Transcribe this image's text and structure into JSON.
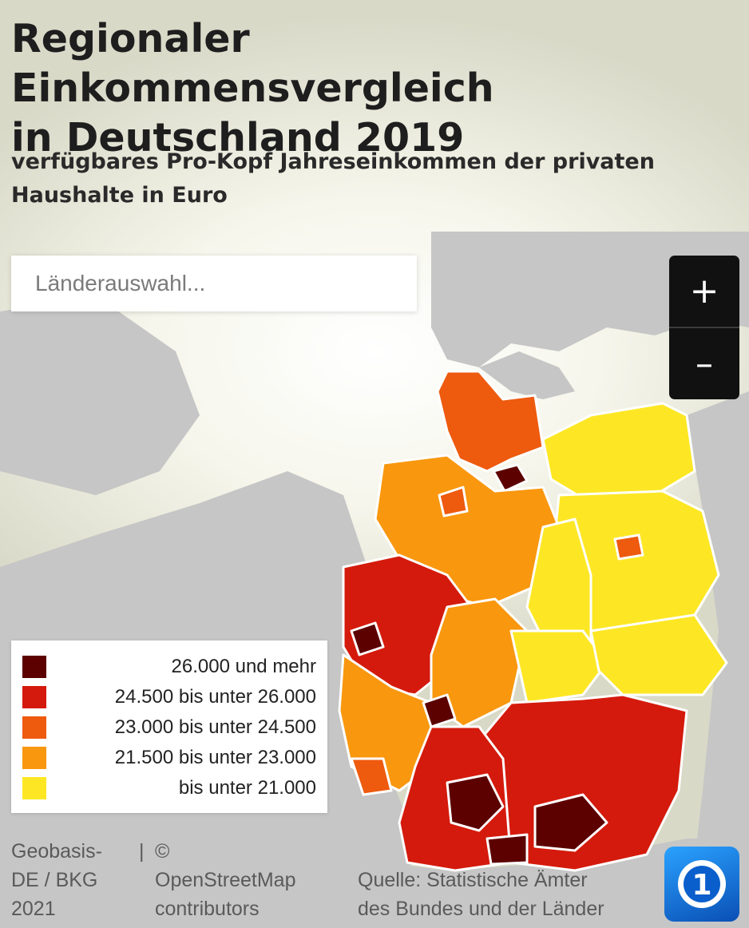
{
  "header": {
    "title_line1": "Regionaler Einkommensvergleich",
    "title_line2": "in Deutschland 2019",
    "subtitle_line1": "verfügbares Pro-Kopf Jahreseinkommen der privaten",
    "subtitle_line2": "Haushalte in Euro"
  },
  "search": {
    "placeholder": "Länderauswahl..."
  },
  "zoom": {
    "in_label": "+",
    "out_label": "–"
  },
  "legend": {
    "items": [
      {
        "label": "26.000 und mehr",
        "color": "#5c0000"
      },
      {
        "label": "24.500 bis unter 26.000",
        "color": "#d41a0c"
      },
      {
        "label": "23.000 bis unter 24.500",
        "color": "#ee5a0e"
      },
      {
        "label": "21.500 bis unter 23.000",
        "color": "#f9970e"
      },
      {
        "label": "bis unter 21.000",
        "color": "#fde724"
      }
    ]
  },
  "attribution": {
    "geobasis": [
      "Geobasis-",
      "DE / BKG",
      "2021"
    ],
    "osm_sep": "|",
    "osm": [
      "©",
      "OpenStreetMap",
      "contributors"
    ],
    "source": [
      "Quelle: Statistische Ämter",
      "des Bundes und der Länder"
    ]
  },
  "logo": {
    "icon": "ard-das-erste-logo"
  },
  "colors": {
    "land": "#c4c4c4",
    "sea": "#e7e7dd",
    "border": "#ffffff"
  }
}
